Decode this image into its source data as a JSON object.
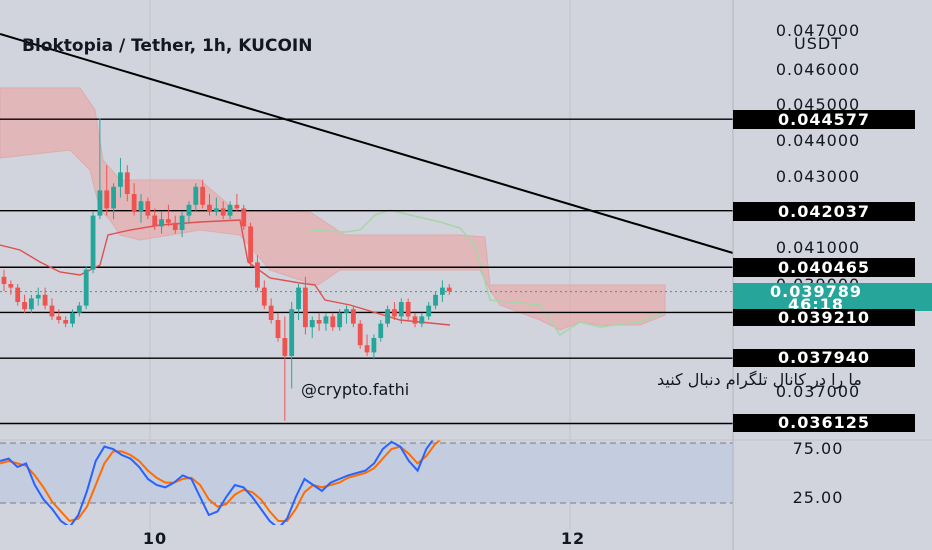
{
  "header": {
    "title": "Bloktopia / Tether, 1h, KUCOIN"
  },
  "price_axis": {
    "currency": "USDT",
    "top_partial": "0.047000",
    "ticks": [
      "0.046000",
      "0.045000",
      "0.044000",
      "0.043000",
      "0.041000",
      "0.037000"
    ],
    "hidden_tick": "0.039000"
  },
  "oscillator_axis": {
    "ticks": [
      "75.00",
      "25.00"
    ]
  },
  "time_axis": {
    "labels": [
      "10",
      "12"
    ]
  },
  "horizontal_levels": [
    "0.044577",
    "0.042037",
    "0.040465",
    "0.039210",
    "0.037940",
    "0.036125"
  ],
  "current_price": {
    "value": "0.039789",
    "countdown": "46:18"
  },
  "annotation": {
    "persian": "ما را در کانال تلگرام دنبال کنید",
    "handle": "@crypto.fathi"
  },
  "colors": {
    "up": "#26a69a",
    "down": "#ef5350",
    "background": "#d1d4dc",
    "cloud_bear": "#f0a0a0",
    "cloud_bull": "#a5d6a7",
    "stoch_k": "#2962ff",
    "stoch_d": "#ff6d00",
    "price_tag": "#26a69a",
    "level_tag": "#000000"
  },
  "chart_data": {
    "type": "candlestick",
    "title": "Bloktopia / Tether, 1h, KUCOIN",
    "ylim": [
      0.0355,
      0.0473
    ],
    "x_labels": [
      "10",
      "12"
    ],
    "horizontal_levels": [
      0.044577,
      0.042037,
      0.040465,
      0.03921,
      0.03794,
      0.036125
    ],
    "current_price": 0.039789,
    "candles": [
      [
        0.0402,
        0.0404,
        0.0398,
        0.04
      ],
      [
        0.04,
        0.0401,
        0.0397,
        0.0399
      ],
      [
        0.0399,
        0.04,
        0.0394,
        0.0395
      ],
      [
        0.0395,
        0.0397,
        0.0392,
        0.0393
      ],
      [
        0.0393,
        0.0397,
        0.0392,
        0.0396
      ],
      [
        0.0396,
        0.0399,
        0.0394,
        0.0397
      ],
      [
        0.0397,
        0.0399,
        0.0393,
        0.0394
      ],
      [
        0.0394,
        0.0396,
        0.039,
        0.0391
      ],
      [
        0.0391,
        0.0393,
        0.0389,
        0.039
      ],
      [
        0.039,
        0.0391,
        0.0388,
        0.0389
      ],
      [
        0.0389,
        0.0393,
        0.0388,
        0.0392
      ],
      [
        0.0392,
        0.0395,
        0.0391,
        0.0394
      ],
      [
        0.0394,
        0.0405,
        0.0393,
        0.0404
      ],
      [
        0.0404,
        0.042,
        0.0403,
        0.0419
      ],
      [
        0.0419,
        0.0446,
        0.0418,
        0.0426
      ],
      [
        0.0426,
        0.0433,
        0.0419,
        0.0421
      ],
      [
        0.0421,
        0.0428,
        0.0418,
        0.0427
      ],
      [
        0.0427,
        0.0435,
        0.0424,
        0.0431
      ],
      [
        0.0431,
        0.0433,
        0.0423,
        0.0425
      ],
      [
        0.0425,
        0.0428,
        0.0419,
        0.042
      ],
      [
        0.042,
        0.0425,
        0.0417,
        0.0423
      ],
      [
        0.0423,
        0.0424,
        0.0418,
        0.0419
      ],
      [
        0.0419,
        0.0421,
        0.0415,
        0.0416
      ],
      [
        0.0416,
        0.042,
        0.0414,
        0.0418
      ],
      [
        0.0418,
        0.0422,
        0.0416,
        0.0417
      ],
      [
        0.0417,
        0.0419,
        0.0414,
        0.0415
      ],
      [
        0.0415,
        0.042,
        0.0413,
        0.0419
      ],
      [
        0.0419,
        0.0423,
        0.0417,
        0.0422
      ],
      [
        0.0422,
        0.0428,
        0.042,
        0.0427
      ],
      [
        0.0427,
        0.0429,
        0.0421,
        0.0422
      ],
      [
        0.0422,
        0.0425,
        0.0419,
        0.042
      ],
      [
        0.042,
        0.0424,
        0.0419,
        0.0421
      ],
      [
        0.0421,
        0.0423,
        0.0418,
        0.0419
      ],
      [
        0.0419,
        0.0423,
        0.0418,
        0.0422
      ],
      [
        0.0422,
        0.0425,
        0.042,
        0.0421
      ],
      [
        0.0421,
        0.0422,
        0.0415,
        0.0416
      ],
      [
        0.0416,
        0.0417,
        0.0405,
        0.0406
      ],
      [
        0.0406,
        0.0408,
        0.0398,
        0.0399
      ],
      [
        0.0399,
        0.0401,
        0.0393,
        0.0394
      ],
      [
        0.0394,
        0.0396,
        0.0389,
        0.039
      ],
      [
        0.039,
        0.0392,
        0.0384,
        0.0385
      ],
      [
        0.0385,
        0.0391,
        0.0362,
        0.038
      ],
      [
        0.038,
        0.0395,
        0.0371,
        0.0393
      ],
      [
        0.0393,
        0.04,
        0.039,
        0.0399
      ],
      [
        0.0399,
        0.0402,
        0.0386,
        0.0388
      ],
      [
        0.0388,
        0.0391,
        0.0385,
        0.039
      ],
      [
        0.039,
        0.0392,
        0.0387,
        0.0389
      ],
      [
        0.0389,
        0.0392,
        0.0387,
        0.0391
      ],
      [
        0.0391,
        0.0392,
        0.0387,
        0.0388
      ],
      [
        0.0388,
        0.0393,
        0.0387,
        0.0392
      ],
      [
        0.0392,
        0.0394,
        0.0389,
        0.0393
      ],
      [
        0.0393,
        0.0394,
        0.0388,
        0.0389
      ],
      [
        0.0389,
        0.039,
        0.0382,
        0.0383
      ],
      [
        0.0383,
        0.0386,
        0.038,
        0.0381
      ],
      [
        0.0381,
        0.0386,
        0.0379,
        0.0385
      ],
      [
        0.0385,
        0.039,
        0.0384,
        0.0389
      ],
      [
        0.0389,
        0.0394,
        0.0388,
        0.0393
      ],
      [
        0.0393,
        0.0395,
        0.039,
        0.0391
      ],
      [
        0.0391,
        0.0396,
        0.0389,
        0.0395
      ],
      [
        0.0395,
        0.0396,
        0.039,
        0.0391
      ],
      [
        0.0391,
        0.0392,
        0.0388,
        0.0389
      ],
      [
        0.0389,
        0.0392,
        0.0388,
        0.0391
      ],
      [
        0.0391,
        0.0395,
        0.039,
        0.0394
      ],
      [
        0.0394,
        0.0398,
        0.0393,
        0.0397
      ],
      [
        0.0397,
        0.0401,
        0.0395,
        0.0399
      ],
      [
        0.0399,
        0.04,
        0.0397,
        0.0398
      ]
    ],
    "stochastic": {
      "range": [
        0,
        100
      ],
      "k": [
        60,
        62,
        55,
        58,
        40,
        28,
        20,
        10,
        5,
        15,
        35,
        60,
        72,
        70,
        65,
        62,
        55,
        45,
        40,
        38,
        42,
        48,
        45,
        30,
        15,
        18,
        30,
        40,
        38,
        30,
        20,
        10,
        4,
        12,
        30,
        45,
        40,
        35,
        42,
        45,
        48,
        50,
        52,
        58,
        70,
        76,
        72,
        60,
        52,
        70,
        80,
        85
      ],
      "d": [
        58,
        60,
        58,
        56,
        48,
        38,
        26,
        18,
        10,
        12,
        22,
        40,
        58,
        68,
        68,
        65,
        60,
        52,
        46,
        42,
        42,
        45,
        46,
        40,
        28,
        22,
        24,
        32,
        36,
        34,
        28,
        18,
        10,
        10,
        20,
        34,
        40,
        38,
        40,
        42,
        46,
        48,
        50,
        54,
        62,
        70,
        72,
        66,
        58,
        64,
        74,
        80
      ]
    }
  }
}
